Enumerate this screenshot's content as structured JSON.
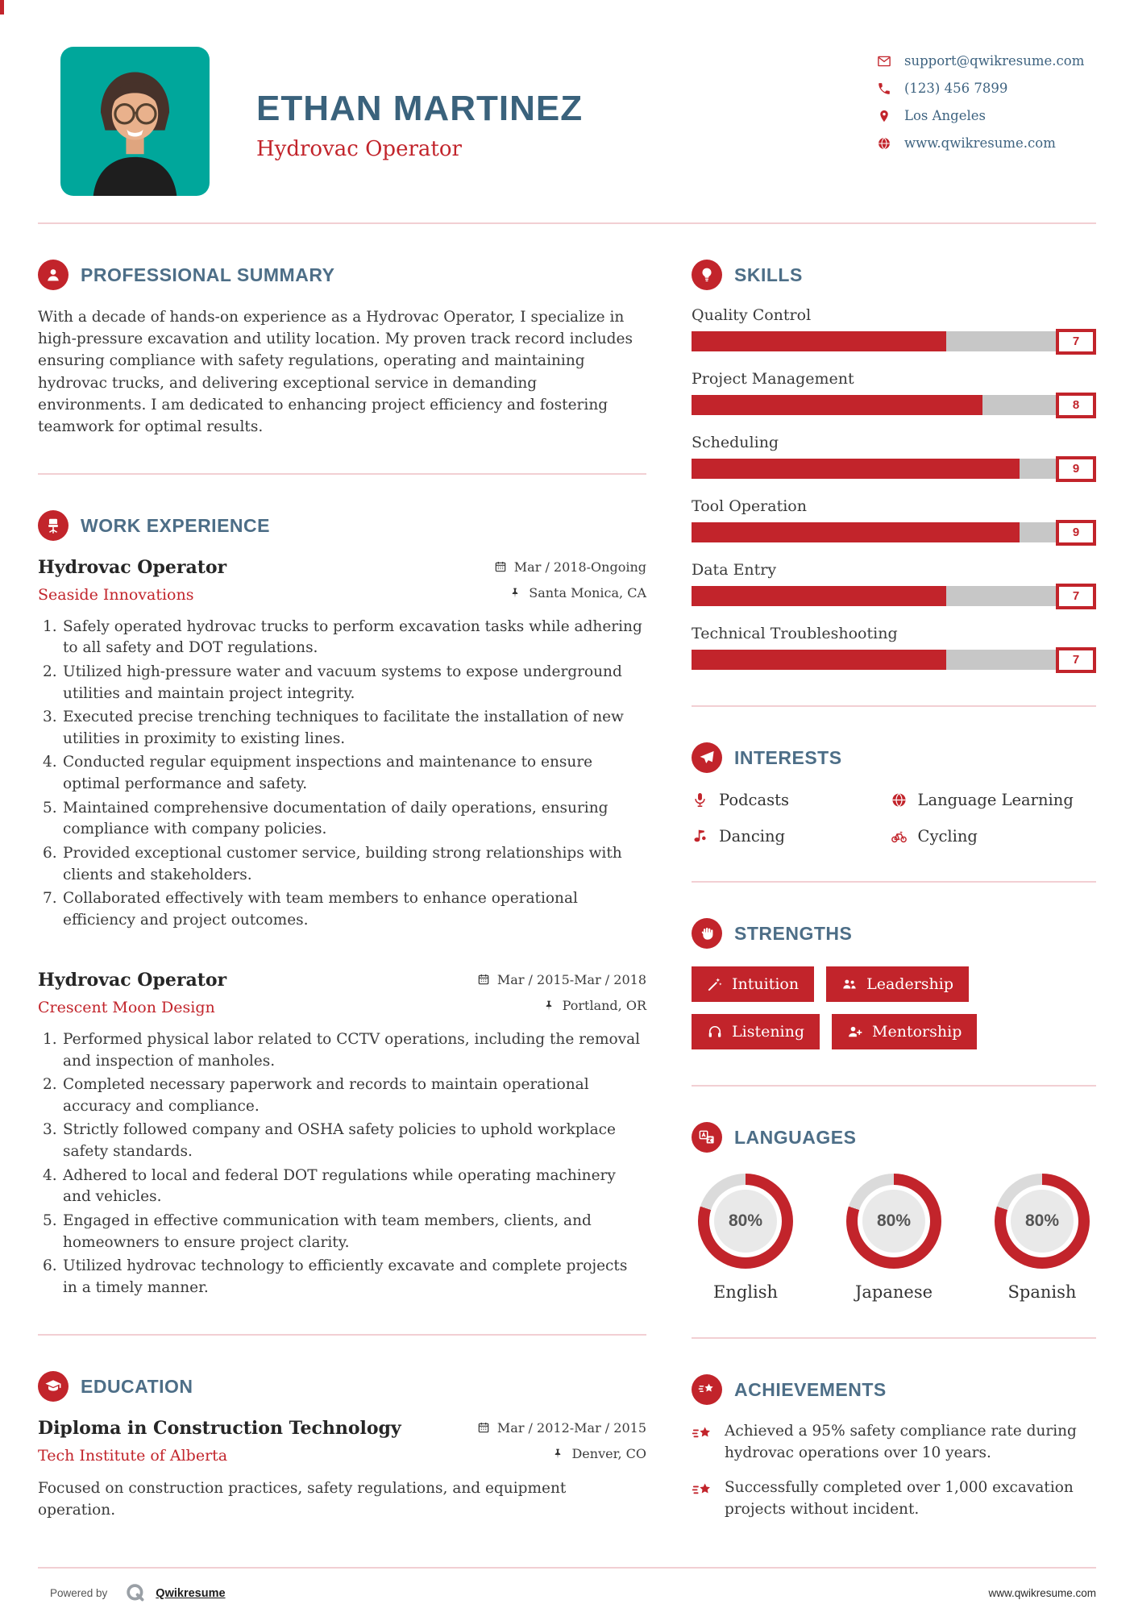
{
  "accent_color": "#C2242B",
  "heading_color": "#4D6E87",
  "photo_bg_color": "#00A79B",
  "header": {
    "name": "ETHAN MARTINEZ",
    "title": "Hydrovac Operator",
    "contact": {
      "email": "support@qwikresume.com",
      "phone": "(123) 456 7899",
      "location": "Los Angeles",
      "website": "www.qwikresume.com"
    }
  },
  "summary": {
    "heading": "PROFESSIONAL SUMMARY",
    "text": "With a decade of hands-on experience as a Hydrovac Operator, I specialize in high-pressure excavation and utility location. My proven track record includes ensuring compliance with safety regulations, operating and maintaining hydrovac trucks, and delivering exceptional service in demanding environments. I am dedicated to enhancing project efficiency and fostering teamwork for optimal results."
  },
  "work": {
    "heading": "WORK EXPERIENCE",
    "jobs": [
      {
        "title": "Hydrovac Operator",
        "company": "Seaside Innovations",
        "date": "Mar / 2018-Ongoing",
        "location": "Santa Monica, CA",
        "bullets": [
          "Safely operated hydrovac trucks to perform excavation tasks while adhering to all safety and DOT regulations.",
          "Utilized high-pressure water and vacuum systems to expose underground utilities and maintain project integrity.",
          "Executed precise trenching techniques to facilitate the installation of new utilities in proximity to existing lines.",
          "Conducted regular equipment inspections and maintenance to ensure optimal performance and safety.",
          "Maintained comprehensive documentation of daily operations, ensuring compliance with company policies.",
          "Provided exceptional customer service, building strong relationships with clients and stakeholders.",
          "Collaborated effectively with team members to enhance operational efficiency and project outcomes."
        ]
      },
      {
        "title": "Hydrovac Operator",
        "company": "Crescent Moon Design",
        "date": "Mar / 2015-Mar / 2018",
        "location": "Portland, OR",
        "bullets": [
          "Performed physical labor related to CCTV operations, including the removal and inspection of manholes.",
          "Completed necessary paperwork and records to maintain operational accuracy and compliance.",
          "Strictly followed company and OSHA safety policies to uphold workplace safety standards.",
          "Adhered to local and federal DOT regulations while operating machinery and vehicles.",
          "Engaged in effective communication with team members, clients, and homeowners to ensure project clarity.",
          "Utilized hydrovac technology to efficiently excavate and complete projects in a timely manner."
        ]
      }
    ]
  },
  "education": {
    "heading": "EDUCATION",
    "degree": "Diploma in Construction Technology",
    "school": "Tech Institute of Alberta",
    "date": "Mar / 2012-Mar / 2015",
    "location": "Denver, CO",
    "description": "Focused on construction practices, safety regulations, and equipment operation."
  },
  "skills": {
    "heading": "SKILLS",
    "items": [
      {
        "label": "Quality Control",
        "score": 7
      },
      {
        "label": "Project Management",
        "score": 8
      },
      {
        "label": "Scheduling",
        "score": 9
      },
      {
        "label": "Tool Operation",
        "score": 9
      },
      {
        "label": "Data Entry",
        "score": 7
      },
      {
        "label": "Technical Troubleshooting",
        "score": 7
      }
    ]
  },
  "interests": {
    "heading": "INTERESTS",
    "items": [
      {
        "icon": "microphone-icon",
        "label": "Podcasts"
      },
      {
        "icon": "globe-icon",
        "label": "Language Learning"
      },
      {
        "icon": "music-note-icon",
        "label": "Dancing"
      },
      {
        "icon": "bicycle-icon",
        "label": "Cycling"
      }
    ]
  },
  "strengths": {
    "heading": "STRENGTHS",
    "items": [
      {
        "icon": "magic-wand-icon",
        "label": "Intuition"
      },
      {
        "icon": "team-icon",
        "label": "Leadership"
      },
      {
        "icon": "headphones-icon",
        "label": "Listening"
      },
      {
        "icon": "person-add-icon",
        "label": "Mentorship"
      }
    ]
  },
  "languages": {
    "heading": "LANGUAGES",
    "items": [
      {
        "label": "English",
        "percent": 80,
        "display": "80%"
      },
      {
        "label": "Japanese",
        "percent": 80,
        "display": "80%"
      },
      {
        "label": "Spanish",
        "percent": 80,
        "display": "80%"
      }
    ]
  },
  "achievements": {
    "heading": "ACHIEVEMENTS",
    "items": [
      "Achieved a 95% safety compliance rate during hydrovac operations over 10 years.",
      "Successfully completed over 1,000 excavation projects without incident."
    ]
  },
  "footer": {
    "powered_by": "Powered by",
    "brand": "Qwikresume",
    "website": "www.qwikresume.com"
  }
}
